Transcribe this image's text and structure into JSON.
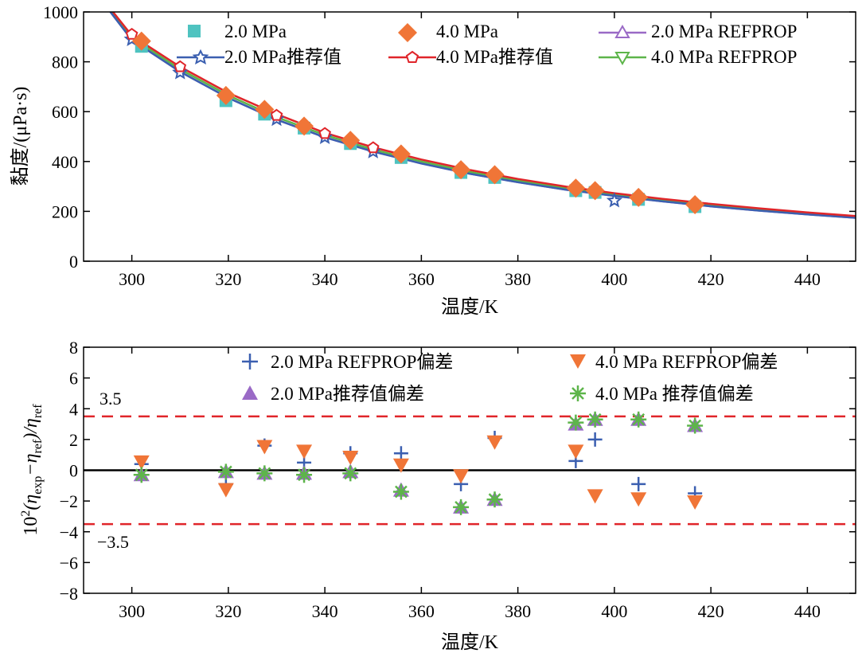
{
  "colors": {
    "teal": "#4fc3c0",
    "orange": "#f07537",
    "purple": "#9a6ac6",
    "blue": "#3b5fb0",
    "red": "#e0252a",
    "green": "#5db54a",
    "limit": "#e0252a"
  },
  "chart_data": [
    {
      "type": "scatter",
      "title": "",
      "xlabel": "温度/K",
      "ylabel": "黏度/(μPa·s)",
      "xlim": [
        290,
        450
      ],
      "ylim": [
        0,
        1000
      ],
      "xticks": [
        300,
        320,
        340,
        360,
        380,
        400,
        420,
        440
      ],
      "yticks": [
        0,
        200,
        400,
        600,
        800,
        1000
      ],
      "legend": {
        "placement": "top",
        "entries": [
          "2.0 MPa",
          "4.0 MPa",
          "2.0 MPa REFPROP",
          "2.0 MPa推荐值",
          "4.0 MPa推荐值",
          "4.0 MPa REFPROP"
        ]
      },
      "series": [
        {
          "name": "2.0 MPa",
          "kind": "markers",
          "marker": "square",
          "color": "#4fc3c0",
          "x": [
            302,
            319.5,
            327.5,
            335.7,
            345.3,
            355.8,
            368.2,
            375.2,
            392,
            396,
            405,
            416.7
          ],
          "y": [
            862,
            644,
            590,
            534,
            472,
            416,
            356,
            336,
            283,
            276,
            248,
            219
          ]
        },
        {
          "name": "4.0 MPa",
          "kind": "markers",
          "marker": "diamond",
          "color": "#f07537",
          "x": [
            302,
            319.5,
            327.5,
            335.7,
            345.3,
            355.8,
            368.2,
            375.2,
            392,
            396,
            405,
            416.7
          ],
          "y": [
            883,
            665,
            609,
            542,
            485,
            430,
            367,
            347,
            293,
            283,
            256,
            227
          ]
        },
        {
          "name": "2.0 MPa REFPROP",
          "kind": "line",
          "marker": "triangle-up",
          "color": "#9a6ac6",
          "x": [
            292,
            300,
            310,
            320,
            330,
            340,
            350,
            360,
            370,
            380,
            390,
            400,
            410,
            420,
            430,
            440,
            450
          ],
          "y": [
            1090,
            888,
            760,
            655,
            568,
            497,
            440,
            392,
            351,
            317,
            287,
            262,
            240,
            220,
            203,
            188,
            174
          ]
        },
        {
          "name": "2.0 MPa推荐值",
          "kind": "line+markers",
          "marker": "star",
          "color": "#3b5fb0",
          "x": [
            292,
            300,
            310,
            320,
            330,
            340,
            350,
            360,
            370,
            380,
            390,
            400,
            410,
            420,
            430,
            440,
            450
          ],
          "y": [
            1090,
            888,
            760,
            655,
            568,
            497,
            440,
            392,
            351,
            317,
            287,
            262,
            240,
            220,
            203,
            188,
            174
          ],
          "marker_x": [
            300,
            310,
            330,
            340,
            350,
            400
          ],
          "marker_y": [
            890,
            757,
            570,
            497,
            440,
            243
          ]
        },
        {
          "name": "4.0 MPa推荐值",
          "kind": "line+markers",
          "marker": "pentagon",
          "color": "#e0252a",
          "x": [
            292,
            300,
            310,
            320,
            330,
            340,
            350,
            360,
            370,
            380,
            390,
            400,
            410,
            420,
            430,
            440,
            450
          ],
          "y": [
            1100,
            905,
            780,
            675,
            590,
            515,
            457,
            408,
            366,
            330,
            299,
            273,
            250,
            230,
            212,
            196,
            181
          ],
          "marker_x": [
            300,
            310,
            330,
            340,
            350
          ],
          "marker_y": [
            910,
            780,
            585,
            512,
            455
          ]
        },
        {
          "name": "4.0 MPa REFPROP",
          "kind": "line",
          "marker": "triangle-down",
          "color": "#5db54a",
          "x": [
            292,
            300,
            310,
            320,
            330,
            340,
            350,
            360,
            370,
            380,
            390,
            400,
            410,
            420,
            430,
            440,
            450
          ],
          "y": [
            1095,
            897,
            770,
            665,
            578,
            506,
            448,
            400,
            358,
            323,
            293,
            267,
            245,
            225,
            208,
            192,
            178
          ]
        }
      ]
    },
    {
      "type": "scatter",
      "title": "",
      "xlabel": "温度/K",
      "ylabel": "10²(η_exp−η_ref)/η_ref",
      "ylabel_parts": {
        "base": "10",
        "exp": "2",
        "open": "(η",
        "sub1": "exp",
        "minus": "−η",
        "sub2": "ref",
        "close": ")/η",
        "sub3": "ref"
      },
      "xlim": [
        290,
        450
      ],
      "ylim": [
        -8,
        8
      ],
      "xticks": [
        300,
        320,
        340,
        360,
        380,
        400,
        420,
        440
      ],
      "yticks": [
        -8,
        -6,
        -4,
        -2,
        0,
        2,
        4,
        6,
        8
      ],
      "reference_lines": [
        {
          "y": 3.5,
          "label": "3.5",
          "style": "dashed"
        },
        {
          "y": -3.5,
          "label": "−3.5",
          "style": "dashed"
        },
        {
          "y": 0,
          "label": "",
          "style": "solid"
        }
      ],
      "legend": {
        "placement": "top",
        "entries": [
          "2.0 MPa REFPROP偏差",
          "4.0 MPa REFPROP偏差",
          "2.0 MPa推荐值偏差",
          "4.0 MPa 推荐值偏差"
        ]
      },
      "series": [
        {
          "name": "2.0 MPa REFPROP偏差",
          "marker": "plus",
          "color": "#3b5fb0",
          "x": [
            302,
            319.5,
            327.5,
            335.7,
            345.3,
            355.8,
            368.2,
            375.2,
            392,
            396,
            405,
            416.7
          ],
          "y": [
            0.4,
            -0.9,
            1.6,
            0.5,
            1.1,
            1.1,
            -0.9,
            2.1,
            0.6,
            2.0,
            -0.9,
            -1.5
          ]
        },
        {
          "name": "4.0 MPa REFPROP偏差",
          "marker": "triangle-down",
          "color": "#f07537",
          "x": [
            302,
            319.5,
            327.5,
            335.7,
            345.3,
            355.8,
            368.2,
            375.2,
            392,
            396,
            405,
            416.7
          ],
          "y": [
            0.5,
            -1.3,
            1.5,
            1.2,
            0.8,
            0.3,
            -0.4,
            1.8,
            1.2,
            -1.7,
            -1.9,
            -2.1
          ]
        },
        {
          "name": "2.0 MPa推荐值偏差",
          "marker": "triangle-up",
          "color": "#9a6ac6",
          "x": [
            302,
            319.5,
            327.5,
            335.7,
            345.3,
            355.8,
            368.2,
            375.2,
            392,
            396,
            405,
            416.7
          ],
          "y": [
            -0.3,
            -0.1,
            -0.2,
            -0.2,
            -0.1,
            -1.3,
            -2.4,
            -1.9,
            3.0,
            3.3,
            3.3,
            2.9
          ]
        },
        {
          "name": "4.0 MPa 推荐值偏差",
          "marker": "asterisk",
          "color": "#5db54a",
          "x": [
            302,
            319.5,
            327.5,
            335.7,
            345.3,
            355.8,
            368.2,
            375.2,
            392,
            396,
            405,
            416.7
          ],
          "y": [
            -0.3,
            -0.1,
            -0.2,
            -0.3,
            -0.2,
            -1.4,
            -2.4,
            -1.9,
            3.1,
            3.3,
            3.3,
            2.9
          ]
        }
      ]
    }
  ]
}
